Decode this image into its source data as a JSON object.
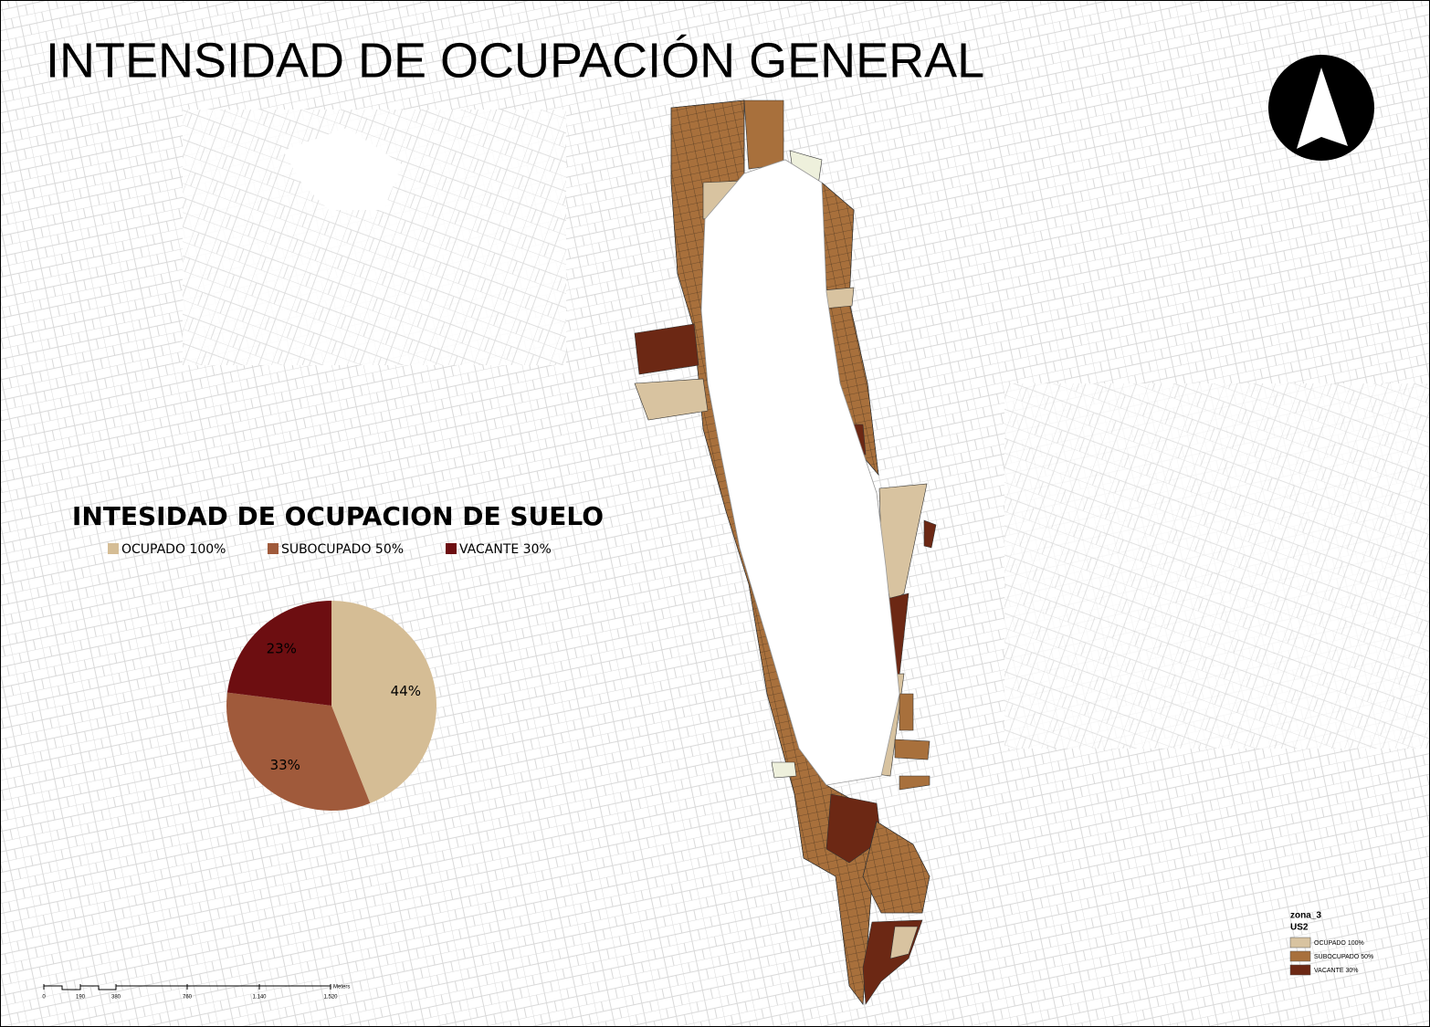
{
  "title": "INTENSIDAD DE OCUPACIÓN GENERAL",
  "chart_data": {
    "type": "pie",
    "title": "INTESIDAD DE OCUPACION DE SUELO",
    "categories": [
      "OCUPADO 100%",
      "SUBOCUPADO 50%",
      "VACANTE 30%"
    ],
    "values": [
      44,
      33,
      23
    ],
    "value_labels": [
      "44%",
      "33%",
      "23%"
    ],
    "colors": [
      "#d5bd95",
      "#a05a3b",
      "#6d0e11"
    ],
    "legend": "top"
  },
  "map_legend": {
    "layer": "zona_3",
    "field": "US2",
    "items": [
      {
        "label": "OCUPADO 100%",
        "color": "#d8c3a0"
      },
      {
        "label": "SUBOCUPADO 50%",
        "color": "#a8703c"
      },
      {
        "label": "VACANTE 30%",
        "color": "#6c2814"
      }
    ]
  },
  "scale_bar": {
    "labels": [
      "0",
      "190",
      "380",
      "760",
      "1.140",
      "1.520"
    ],
    "unit": "Meters"
  }
}
